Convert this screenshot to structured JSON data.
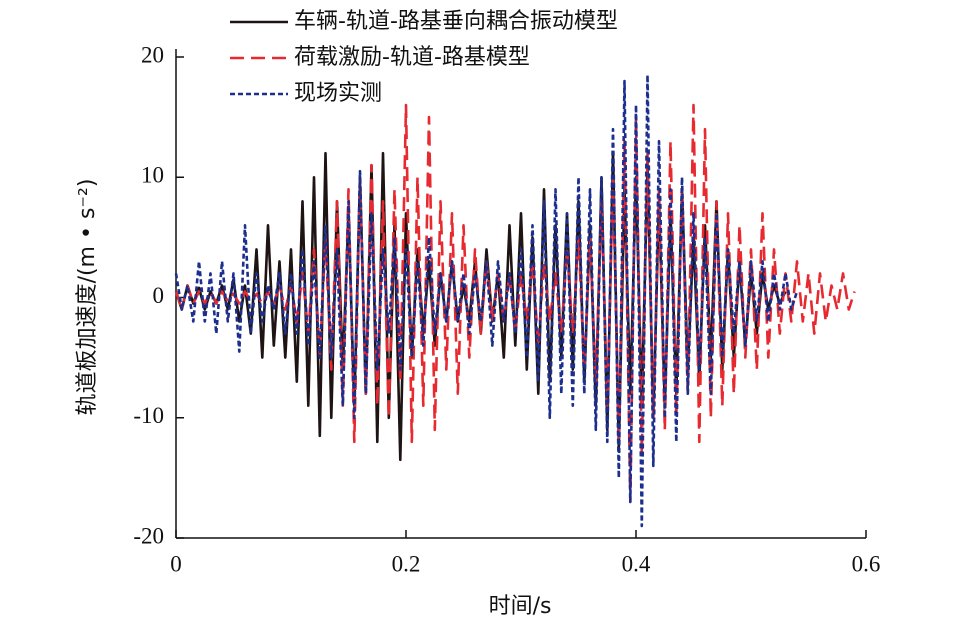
{
  "chart_data": {
    "type": "line",
    "xlabel": "时间/s",
    "ylabel": "轨道板加速度/(m • s⁻²)",
    "xlim": [
      0,
      0.6
    ],
    "xticks": [
      0,
      0.2,
      0.4,
      0.6
    ],
    "ylim": [
      -20,
      20
    ],
    "yticks": [
      -20,
      -10,
      0,
      10,
      20
    ],
    "legend": "upper left",
    "x": [
      0,
      0.005,
      0.01,
      0.015,
      0.02,
      0.025,
      0.03,
      0.035,
      0.04,
      0.045,
      0.05,
      0.055,
      0.06,
      0.065,
      0.07,
      0.075,
      0.08,
      0.085,
      0.09,
      0.095,
      0.1,
      0.105,
      0.11,
      0.115,
      0.12,
      0.125,
      0.13,
      0.135,
      0.14,
      0.145,
      0.15,
      0.155,
      0.16,
      0.165,
      0.17,
      0.175,
      0.18,
      0.185,
      0.19,
      0.195,
      0.2,
      0.205,
      0.21,
      0.215,
      0.22,
      0.225,
      0.23,
      0.235,
      0.24,
      0.245,
      0.25,
      0.255,
      0.26,
      0.265,
      0.27,
      0.275,
      0.28,
      0.285,
      0.29,
      0.295,
      0.3,
      0.305,
      0.31,
      0.315,
      0.32,
      0.325,
      0.33,
      0.335,
      0.34,
      0.345,
      0.35,
      0.355,
      0.36,
      0.365,
      0.37,
      0.375,
      0.38,
      0.385,
      0.39,
      0.395,
      0.4,
      0.405,
      0.41,
      0.415,
      0.42,
      0.425,
      0.43,
      0.435,
      0.44,
      0.445,
      0.45,
      0.455,
      0.46,
      0.465,
      0.47,
      0.475,
      0.48,
      0.485,
      0.49,
      0.495,
      0.5,
      0.505,
      0.51,
      0.515,
      0.52,
      0.525,
      0.53,
      0.535,
      0.54,
      0.545,
      0.55,
      0.555,
      0.56,
      0.565,
      0.57,
      0.575,
      0.58,
      0.585,
      0.59
    ],
    "series": [
      {
        "name": "车辆-轨道-路基垂向耦合振动模型",
        "color": "#1e1414",
        "dash": "solid",
        "values": [
          0.5,
          -1,
          1,
          -0.5,
          0.8,
          -1,
          0.5,
          -0.5,
          1,
          -1,
          1.5,
          -2,
          1,
          -3,
          4,
          -5,
          6,
          -4,
          3,
          -5,
          4,
          -7,
          8,
          -9,
          10,
          -11.5,
          12,
          -10,
          8,
          -6,
          7,
          -9,
          10,
          -8,
          11,
          -12,
          12,
          -10,
          6,
          -13.5,
          7,
          -5,
          4,
          -3,
          3,
          -4,
          2,
          -2,
          3,
          -2,
          1,
          -2,
          3,
          -3,
          4,
          -2,
          2,
          -5,
          6,
          -4,
          7,
          -6,
          5,
          -8,
          9,
          -7,
          6,
          -5,
          7,
          -6,
          8,
          -7,
          6,
          -9,
          10,
          -11,
          12,
          -12.5,
          9,
          -8,
          10,
          -9,
          11,
          -10,
          8,
          -9,
          7,
          -8,
          9,
          -6,
          5,
          -7,
          6,
          -5,
          8,
          -6,
          4,
          -5,
          3,
          -4,
          2,
          -3,
          2,
          -1,
          1,
          -0.5,
          0.5,
          null,
          null,
          null,
          null,
          null,
          null,
          null,
          null,
          null,
          null,
          null,
          null
        ]
      },
      {
        "name": "荷载激励-轨道-路基模型",
        "color": "#e62a30",
        "dash": "long",
        "values": [
          0.5,
          -1,
          1,
          -0.5,
          0.5,
          -0.5,
          0.5,
          -0.5,
          0.5,
          -0.3,
          0.3,
          -0.5,
          0.5,
          -0.3,
          0.3,
          -0.5,
          0.5,
          -0.5,
          1,
          -1,
          1,
          -2,
          2,
          -3,
          4,
          -5,
          5,
          -6,
          8,
          -9,
          9,
          -12,
          10,
          -8,
          11,
          -9,
          8,
          -10,
          9,
          -7,
          16,
          -12,
          10,
          -9,
          15,
          -11,
          8,
          -6,
          7,
          -8,
          6,
          -5,
          4,
          -3,
          3,
          -2,
          2,
          -2,
          2,
          -3,
          2,
          -2,
          3,
          -4,
          3,
          -2,
          2,
          -3,
          4,
          -3,
          5,
          -6,
          5,
          -7,
          8,
          -9,
          10,
          -12,
          13,
          -17,
          15,
          -13,
          12,
          -10,
          9,
          -11,
          13,
          -10,
          9,
          -8,
          16,
          -12,
          14,
          -10,
          8,
          -9,
          7,
          -8,
          6,
          -5,
          4,
          -6,
          7,
          -5,
          4,
          -3,
          2,
          -2,
          3,
          -2,
          2,
          -3,
          2,
          -2,
          1,
          -1,
          2,
          -1,
          0.5
        ]
      },
      {
        "name": "现场实测",
        "color": "#1c2f8e",
        "dash": "short",
        "values": [
          2,
          -1,
          1,
          -2,
          3,
          -2,
          2,
          -3,
          3,
          -2,
          2,
          -4.5,
          6,
          -3,
          2,
          -2,
          1,
          -1,
          2,
          -3,
          2,
          -3,
          4,
          -4,
          3,
          -5,
          6,
          -5,
          4,
          -9,
          8,
          -10,
          10.5,
          -8,
          7,
          -6,
          4,
          -3,
          5,
          -6,
          4,
          -5,
          3,
          -4,
          5,
          -3,
          2,
          -2,
          3,
          -2,
          2,
          -3,
          2,
          -2,
          3,
          -4,
          3,
          -2,
          2,
          -3,
          4,
          -5,
          6,
          -7,
          8,
          -10,
          9,
          -8,
          7,
          -9,
          10,
          -8,
          9,
          -11,
          10,
          -12,
          14,
          -15,
          18,
          -17,
          16,
          -19,
          18.5,
          -14,
          13,
          -10,
          9,
          -12,
          10,
          -8,
          7,
          -6,
          5,
          -8,
          7,
          -5,
          4,
          -3,
          3,
          -4,
          3,
          -2,
          3,
          -2,
          2,
          -1,
          2,
          -1,
          0.5,
          null,
          null,
          null,
          null,
          null,
          null,
          null,
          null,
          null,
          null
        ]
      }
    ]
  }
}
